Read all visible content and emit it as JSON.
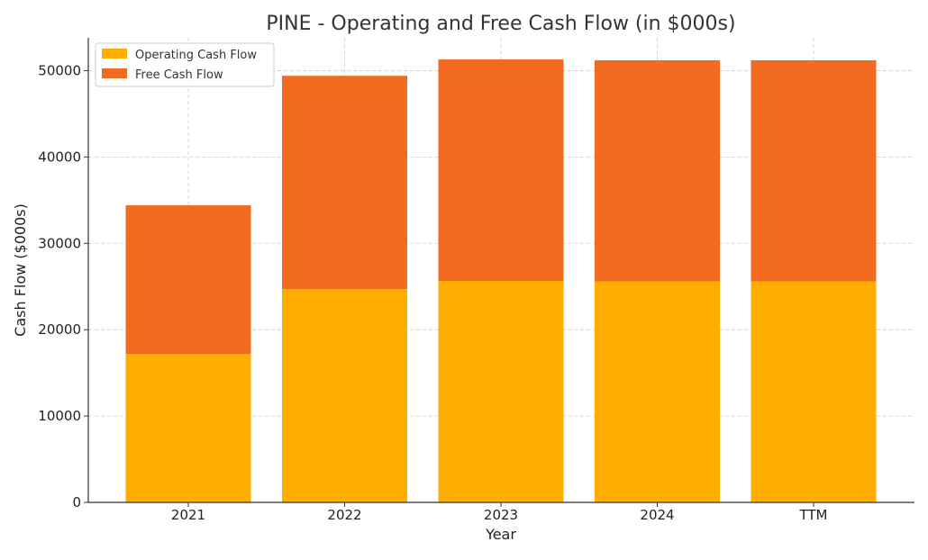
{
  "chart_data": {
    "type": "bar",
    "stacked": true,
    "title": "PINE - Operating and Free Cash Flow (in $000s)",
    "xlabel": "Year",
    "ylabel": "Cash Flow ($000s)",
    "categories": [
      "2021",
      "2022",
      "2023",
      "2024",
      "TTM"
    ],
    "series": [
      {
        "name": "Operating Cash Flow",
        "color": "#FFAE00",
        "values": [
          17200,
          24700,
          25650,
          25600,
          25600
        ]
      },
      {
        "name": "Free Cash Flow",
        "color": "#F26B21",
        "values": [
          17200,
          24700,
          25650,
          25600,
          25600
        ]
      }
    ],
    "ylim": [
      0,
      53800
    ],
    "yticks": [
      0,
      10000,
      20000,
      30000,
      40000,
      50000
    ],
    "grid": true,
    "legend_position": "top-left"
  }
}
